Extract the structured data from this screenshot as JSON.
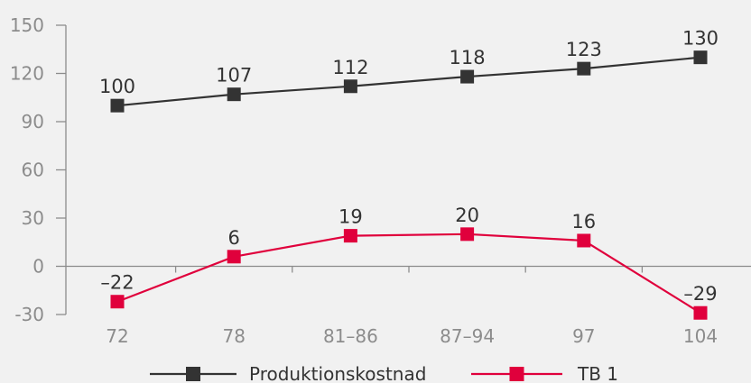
{
  "chart_data": {
    "type": "line",
    "categories": [
      "72",
      "78",
      "81–86",
      "87–94",
      "97",
      "104"
    ],
    "series": [
      {
        "name": "Produktionskostnad",
        "values": [
          100,
          107,
          112,
          118,
          123,
          130
        ],
        "labels": [
          "100",
          "107",
          "112",
          "118",
          "123",
          "130"
        ],
        "color": "#333333"
      },
      {
        "name": "TB 1",
        "values": [
          -22,
          6,
          19,
          20,
          16,
          -29
        ],
        "labels": [
          "–22",
          "6",
          "19",
          "20",
          "16",
          "–29"
        ],
        "color": "#e0003c"
      }
    ],
    "yticks": [
      150,
      120,
      90,
      60,
      30,
      0,
      -30
    ],
    "ytick_labels": [
      "150",
      "120",
      "90",
      "60",
      "30",
      "0",
      "-30"
    ],
    "ylim": [
      -30,
      150
    ],
    "title": "",
    "xlabel": "",
    "ylabel": "",
    "grid": false,
    "legend_position": "bottom",
    "axis_color": "#8c8c8c"
  }
}
